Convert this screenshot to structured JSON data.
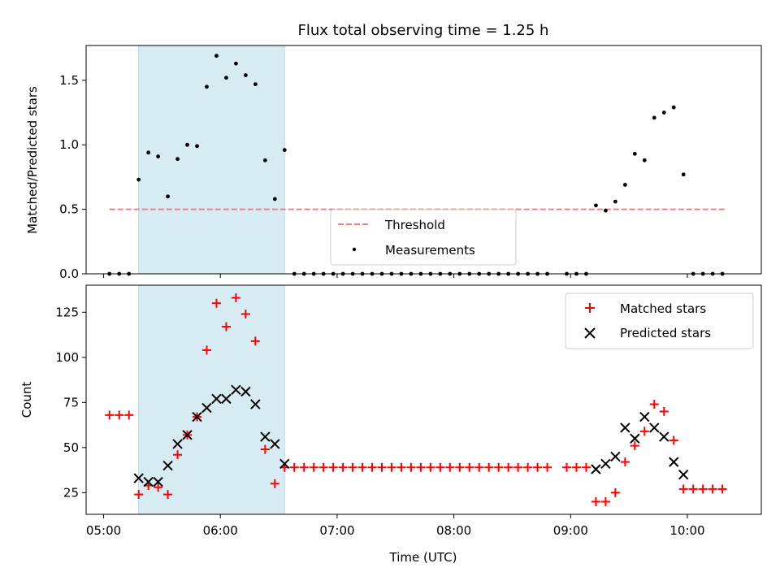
{
  "chart_data": [
    {
      "type": "scatter",
      "title": "Flux total observing time = 1.25 h",
      "xlabel": "",
      "ylabel": "Matched/Predicted stars",
      "xlim": [
        "04:51",
        "10:38"
      ],
      "ylim": [
        0,
        1.77
      ],
      "yticks": [
        0.0,
        0.5,
        1.0,
        1.5
      ],
      "ytick_labels": [
        "0.0",
        "0.5",
        "1.0",
        "1.5"
      ],
      "shaded_span": [
        "05:18",
        "06:33"
      ],
      "shade_color": "#add8e6",
      "threshold": {
        "name": "Threshold",
        "y": 0.5,
        "x_start": "05:03",
        "x_end": "10:20",
        "color": "#f08080"
      },
      "legend_position": "lower-center",
      "series": [
        {
          "name": "Measurements",
          "color": "#000000",
          "x": [
            "05:03",
            "05:08",
            "05:13",
            "05:18",
            "05:23",
            "05:28",
            "05:33",
            "05:38",
            "05:43",
            "05:48",
            "05:53",
            "05:58",
            "06:03",
            "06:08",
            "06:13",
            "06:18",
            "06:23",
            "06:28",
            "06:33",
            "06:38",
            "06:43",
            "06:48",
            "06:53",
            "06:58",
            "07:03",
            "07:08",
            "07:13",
            "07:18",
            "07:23",
            "07:28",
            "07:33",
            "07:38",
            "07:43",
            "07:48",
            "07:53",
            "07:58",
            "08:03",
            "08:08",
            "08:13",
            "08:18",
            "08:23",
            "08:28",
            "08:33",
            "08:38",
            "08:43",
            "08:48",
            "08:58",
            "09:03",
            "09:08",
            "09:13",
            "09:18",
            "09:23",
            "09:28",
            "09:33",
            "09:38",
            "09:43",
            "09:48",
            "09:53",
            "09:58",
            "10:03",
            "10:08",
            "10:13",
            "10:18"
          ],
          "y": [
            0.0,
            0.0,
            0.0,
            0.73,
            0.94,
            0.91,
            0.6,
            0.89,
            1.0,
            0.99,
            1.45,
            1.69,
            1.52,
            1.63,
            1.54,
            1.47,
            0.88,
            0.58,
            0.96,
            0.0,
            0.0,
            0.0,
            0.0,
            0.0,
            0.0,
            0.0,
            0.0,
            0.0,
            0.0,
            0.0,
            0.0,
            0.0,
            0.0,
            0.0,
            0.0,
            0.0,
            0.0,
            0.0,
            0.0,
            0.0,
            0.0,
            0.0,
            0.0,
            0.0,
            0.0,
            0.0,
            0.0,
            0.0,
            0.0,
            0.53,
            0.49,
            0.56,
            0.69,
            0.93,
            0.88,
            1.21,
            1.25,
            1.29,
            0.77,
            0.0,
            0.0,
            0.0,
            0.0
          ]
        }
      ]
    },
    {
      "type": "scatter",
      "title": "",
      "xlabel": "Time (UTC)",
      "ylabel": "Count",
      "xlim": [
        "04:51",
        "10:38"
      ],
      "ylim": [
        13,
        140
      ],
      "yticks": [
        25,
        50,
        75,
        100,
        125
      ],
      "ytick_labels": [
        "25",
        "50",
        "75",
        "100",
        "125"
      ],
      "xticks": [
        "05:00",
        "06:00",
        "07:00",
        "08:00",
        "09:00",
        "10:00"
      ],
      "shaded_span": [
        "05:18",
        "06:33"
      ],
      "shade_color": "#add8e6",
      "legend_position": "upper-right",
      "series": [
        {
          "name": "Matched stars",
          "marker": "+",
          "color": "#ff0000",
          "x": [
            "05:03",
            "05:08",
            "05:13",
            "05:18",
            "05:23",
            "05:28",
            "05:33",
            "05:38",
            "05:43",
            "05:48",
            "05:53",
            "05:58",
            "06:03",
            "06:08",
            "06:13",
            "06:18",
            "06:23",
            "06:28",
            "06:33",
            "06:38",
            "06:43",
            "06:48",
            "06:53",
            "06:58",
            "07:03",
            "07:08",
            "07:13",
            "07:18",
            "07:23",
            "07:28",
            "07:33",
            "07:38",
            "07:43",
            "07:48",
            "07:53",
            "07:58",
            "08:03",
            "08:08",
            "08:13",
            "08:18",
            "08:23",
            "08:28",
            "08:33",
            "08:38",
            "08:43",
            "08:48",
            "08:58",
            "09:03",
            "09:08",
            "09:13",
            "09:18",
            "09:23",
            "09:28",
            "09:33",
            "09:38",
            "09:43",
            "09:48",
            "09:53",
            "09:58",
            "10:03",
            "10:08",
            "10:13",
            "10:18"
          ],
          "y": [
            68,
            68,
            68,
            24,
            29,
            28,
            24,
            46,
            57,
            67,
            104,
            130,
            117,
            133,
            124,
            109,
            49,
            30,
            39,
            39,
            39,
            39,
            39,
            39,
            39,
            39,
            39,
            39,
            39,
            39,
            39,
            39,
            39,
            39,
            39,
            39,
            39,
            39,
            39,
            39,
            39,
            39,
            39,
            39,
            39,
            39,
            39,
            39,
            39,
            20,
            20,
            25,
            42,
            51,
            59,
            74,
            70,
            54,
            27,
            27,
            27,
            27,
            27
          ]
        },
        {
          "name": "Predicted stars",
          "marker": "x",
          "color": "#000000",
          "x": [
            "05:18",
            "05:23",
            "05:28",
            "05:33",
            "05:38",
            "05:43",
            "05:48",
            "05:53",
            "05:58",
            "06:03",
            "06:08",
            "06:13",
            "06:18",
            "06:23",
            "06:28",
            "06:33",
            "09:13",
            "09:18",
            "09:23",
            "09:28",
            "09:33",
            "09:38",
            "09:43",
            "09:48",
            "09:53",
            "09:58"
          ],
          "y": [
            33,
            31,
            31,
            40,
            52,
            57,
            67,
            72,
            77,
            77,
            82,
            81,
            74,
            56,
            52,
            41,
            38,
            41,
            45,
            61,
            55,
            67,
            61,
            56,
            42,
            35
          ]
        }
      ]
    }
  ]
}
